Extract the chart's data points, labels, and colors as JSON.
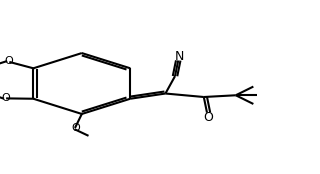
{
  "bg_color": "#ffffff",
  "line_color": "#000000",
  "line_width": 1.5,
  "bond_width": 1.5,
  "figsize": [
    3.2,
    1.74
  ],
  "dpi": 100,
  "atoms": {
    "O_top": "O",
    "O_mid": "O",
    "O_bot": "O",
    "N": "N",
    "O_ketone": "O"
  },
  "labels": {
    "methoxy_top": "O",
    "methoxy_mid": "O",
    "methoxy_bot": "O",
    "nitrile_N": "N",
    "ketone_O": "O"
  }
}
